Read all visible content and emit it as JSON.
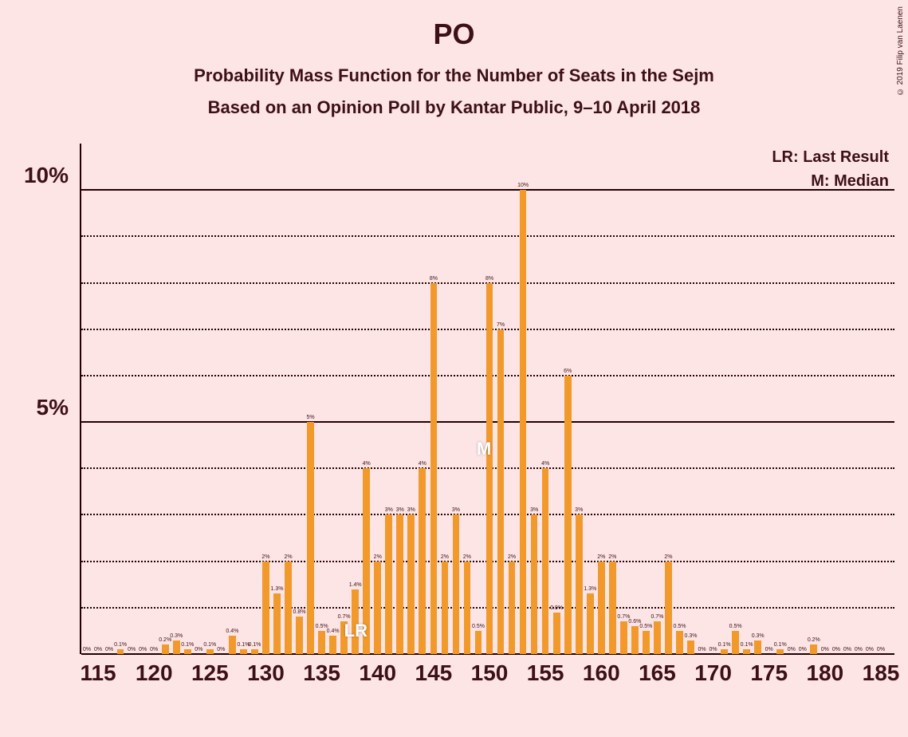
{
  "title": "PO",
  "subtitle1": "Probability Mass Function for the Number of Seats in the Sejm",
  "subtitle2": "Based on an Opinion Poll by Kantar Public, 9–10 April 2018",
  "legend": {
    "lr": "LR: Last Result",
    "m": "M: Median"
  },
  "copyright": "© 2019 Filip van Laenen",
  "chart": {
    "type": "bar",
    "background_color": "#fde5e6",
    "bar_color": "#f2992b",
    "text_color": "#3d1016",
    "grid_color": "#220000",
    "title_fontsize": 36,
    "subtitle_fontsize": 22,
    "legend_fontsize": 20,
    "ylabel_fontsize": 28,
    "xlabel_fontsize": 28,
    "bar_width_ratio": 0.62,
    "ylim": [
      0,
      11
    ],
    "y_major_ticks": [
      5,
      10
    ],
    "y_minor_ticks": [
      1,
      2,
      3,
      4,
      6,
      7,
      8,
      9
    ],
    "y_tick_labels": {
      "5": "5%",
      "10": "10%"
    },
    "x_start": 114,
    "x_end": 185,
    "x_right_pad": 10,
    "x_major_ticks": [
      115,
      120,
      125,
      130,
      135,
      140,
      145,
      150,
      155,
      160,
      165,
      170,
      175,
      180,
      185
    ],
    "lr_position": 138,
    "median_position": 149,
    "data": [
      {
        "x": 114,
        "v": 0.0,
        "lbl": "0%"
      },
      {
        "x": 115,
        "v": 0.0,
        "lbl": "0%"
      },
      {
        "x": 116,
        "v": 0.0,
        "lbl": "0%"
      },
      {
        "x": 117,
        "v": 0.1,
        "lbl": "0.1%"
      },
      {
        "x": 118,
        "v": 0.0,
        "lbl": "0%"
      },
      {
        "x": 119,
        "v": 0.0,
        "lbl": "0%"
      },
      {
        "x": 120,
        "v": 0.0,
        "lbl": "0%"
      },
      {
        "x": 121,
        "v": 0.2,
        "lbl": "0.2%"
      },
      {
        "x": 122,
        "v": 0.3,
        "lbl": "0.3%"
      },
      {
        "x": 123,
        "v": 0.1,
        "lbl": "0.1%"
      },
      {
        "x": 124,
        "v": 0.0,
        "lbl": "0%"
      },
      {
        "x": 125,
        "v": 0.1,
        "lbl": "0.1%"
      },
      {
        "x": 126,
        "v": 0.0,
        "lbl": "0%"
      },
      {
        "x": 127,
        "v": 0.4,
        "lbl": "0.4%"
      },
      {
        "x": 128,
        "v": 0.1,
        "lbl": "0.1%"
      },
      {
        "x": 129,
        "v": 0.1,
        "lbl": "0.1%"
      },
      {
        "x": 130,
        "v": 2.0,
        "lbl": "2%"
      },
      {
        "x": 131,
        "v": 1.3,
        "lbl": "1.3%"
      },
      {
        "x": 132,
        "v": 2.0,
        "lbl": "2%"
      },
      {
        "x": 133,
        "v": 0.8,
        "lbl": "0.8%"
      },
      {
        "x": 134,
        "v": 5.0,
        "lbl": "5%"
      },
      {
        "x": 135,
        "v": 0.5,
        "lbl": "0.5%"
      },
      {
        "x": 136,
        "v": 0.4,
        "lbl": "0.4%"
      },
      {
        "x": 137,
        "v": 0.7,
        "lbl": "0.7%"
      },
      {
        "x": 138,
        "v": 1.4,
        "lbl": "1.4%"
      },
      {
        "x": 139,
        "v": 4.0,
        "lbl": "4%"
      },
      {
        "x": 140,
        "v": 2.0,
        "lbl": "2%"
      },
      {
        "x": 141,
        "v": 3.0,
        "lbl": "3%"
      },
      {
        "x": 142,
        "v": 3.0,
        "lbl": "3%"
      },
      {
        "x": 143,
        "v": 3.0,
        "lbl": "3%"
      },
      {
        "x": 144,
        "v": 4.0,
        "lbl": "4%"
      },
      {
        "x": 145,
        "v": 8.0,
        "lbl": "8%"
      },
      {
        "x": 146,
        "v": 2.0,
        "lbl": "2%"
      },
      {
        "x": 147,
        "v": 3.0,
        "lbl": "3%"
      },
      {
        "x": 148,
        "v": 2.0,
        "lbl": "2%"
      },
      {
        "x": 149,
        "v": 0.5,
        "lbl": "0.5%"
      },
      {
        "x": 150,
        "v": 8.0,
        "lbl": "8%"
      },
      {
        "x": 151,
        "v": 7.0,
        "lbl": "7%"
      },
      {
        "x": 152,
        "v": 2.0,
        "lbl": "2%"
      },
      {
        "x": 153,
        "v": 10.0,
        "lbl": "10%"
      },
      {
        "x": 154,
        "v": 3.0,
        "lbl": "3%"
      },
      {
        "x": 155,
        "v": 4.0,
        "lbl": "4%"
      },
      {
        "x": 156,
        "v": 0.9,
        "lbl": "0.9%"
      },
      {
        "x": 157,
        "v": 6.0,
        "lbl": "6%"
      },
      {
        "x": 158,
        "v": 3.0,
        "lbl": "3%"
      },
      {
        "x": 159,
        "v": 1.3,
        "lbl": "1.3%"
      },
      {
        "x": 160,
        "v": 2.0,
        "lbl": "2%"
      },
      {
        "x": 161,
        "v": 2.0,
        "lbl": "2%"
      },
      {
        "x": 162,
        "v": 0.7,
        "lbl": "0.7%"
      },
      {
        "x": 163,
        "v": 0.6,
        "lbl": "0.6%"
      },
      {
        "x": 164,
        "v": 0.5,
        "lbl": "0.5%"
      },
      {
        "x": 165,
        "v": 0.7,
        "lbl": "0.7%"
      },
      {
        "x": 166,
        "v": 2.0,
        "lbl": "2%"
      },
      {
        "x": 167,
        "v": 0.5,
        "lbl": "0.5%"
      },
      {
        "x": 168,
        "v": 0.3,
        "lbl": "0.3%"
      },
      {
        "x": 169,
        "v": 0.0,
        "lbl": "0%"
      },
      {
        "x": 170,
        "v": 0.0,
        "lbl": "0%"
      },
      {
        "x": 171,
        "v": 0.1,
        "lbl": "0.1%"
      },
      {
        "x": 172,
        "v": 0.5,
        "lbl": "0.5%"
      },
      {
        "x": 173,
        "v": 0.1,
        "lbl": "0.1%"
      },
      {
        "x": 174,
        "v": 0.3,
        "lbl": "0.3%"
      },
      {
        "x": 175,
        "v": 0.0,
        "lbl": "0%"
      },
      {
        "x": 176,
        "v": 0.1,
        "lbl": "0.1%"
      },
      {
        "x": 177,
        "v": 0.0,
        "lbl": "0%"
      },
      {
        "x": 178,
        "v": 0.0,
        "lbl": "0%"
      },
      {
        "x": 179,
        "v": 0.2,
        "lbl": "0.2%"
      },
      {
        "x": 180,
        "v": 0.0,
        "lbl": "0%"
      },
      {
        "x": 181,
        "v": 0.0,
        "lbl": "0%"
      },
      {
        "x": 182,
        "v": 0.0,
        "lbl": "0%"
      },
      {
        "x": 183,
        "v": 0.0,
        "lbl": "0%"
      },
      {
        "x": 184,
        "v": 0.0,
        "lbl": "0%"
      },
      {
        "x": 185,
        "v": 0.0,
        "lbl": "0%"
      }
    ],
    "marker_lr_text": "LR",
    "marker_m_text": "M"
  }
}
